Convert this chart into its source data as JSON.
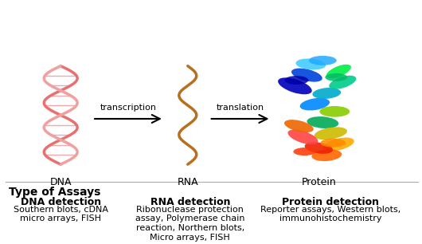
{
  "title_assays": "Type of Assays",
  "col1_header": "DNA detection",
  "col2_header": "RNA detection",
  "col3_header": "Protein detection",
  "col1_body": "Southern blots, cDNA\nmicro arrays, FISH",
  "col2_body": "Ribonuclease protection\nassay, Polymerase chain\nreaction, Northern blots,\nMicro arrays, FISH",
  "col3_body": "Reporter assays, Western blots,\nimmunohistochemistry",
  "label_dna": "DNA",
  "label_rna": "RNA",
  "label_protein": "Protein",
  "arrow1_label": "transcription",
  "arrow2_label": "translation",
  "bg_color": "#ffffff",
  "text_color": "#000000",
  "dna_color1": "#e87070",
  "dna_color2": "#f0a0a0",
  "rna_color": "#b87020",
  "divider_color": "#cccccc",
  "title_fontsize": 10,
  "header_fontsize": 9,
  "body_fontsize": 8,
  "label_fontsize": 9,
  "arrow_fontsize": 8
}
